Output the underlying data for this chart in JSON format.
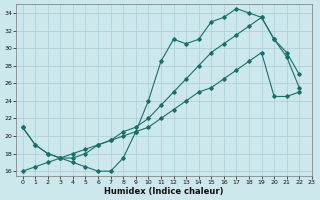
{
  "xlabel": "Humidex (Indice chaleur)",
  "bg_color": "#cce8ec",
  "grid_color": "#aacdd4",
  "line_color": "#1a6e6a",
  "xlim": [
    -0.5,
    23
  ],
  "ylim": [
    15.5,
    35
  ],
  "yticks": [
    16,
    18,
    20,
    22,
    24,
    26,
    28,
    30,
    32,
    34
  ],
  "xticks": [
    0,
    1,
    2,
    3,
    4,
    5,
    6,
    7,
    8,
    9,
    10,
    11,
    12,
    13,
    14,
    15,
    16,
    17,
    18,
    19,
    20,
    21,
    22,
    23
  ],
  "series1_x": [
    0,
    1,
    2,
    3,
    4,
    5,
    6,
    7,
    8,
    9,
    10,
    11,
    12,
    13,
    14,
    15,
    16,
    17,
    18,
    19,
    20,
    21,
    22
  ],
  "series1_y": [
    21.0,
    19.0,
    18.0,
    17.5,
    17.0,
    16.5,
    16.0,
    16.0,
    17.5,
    20.5,
    24.0,
    28.5,
    31.0,
    30.5,
    31.0,
    33.0,
    33.5,
    34.5,
    34.0,
    33.5,
    31.0,
    29.0,
    25.5
  ],
  "series2_x": [
    0,
    1,
    2,
    3,
    4,
    5,
    6,
    7,
    8,
    9,
    10,
    11,
    12,
    13,
    14,
    15,
    16,
    17,
    18,
    19,
    20,
    21,
    22
  ],
  "series2_y": [
    16.0,
    16.5,
    17.0,
    17.5,
    18.0,
    18.5,
    19.0,
    19.5,
    20.0,
    20.5,
    21.0,
    22.0,
    23.0,
    24.0,
    25.0,
    25.5,
    26.5,
    27.5,
    28.5,
    29.5,
    24.5,
    24.5,
    25.0
  ],
  "series3_x": [
    0,
    1,
    2,
    3,
    4,
    5,
    6,
    7,
    8,
    9,
    10,
    11,
    12,
    13,
    14,
    15,
    16,
    17,
    18,
    19,
    20,
    21,
    22
  ],
  "series3_y": [
    21.0,
    19.0,
    18.0,
    17.5,
    17.5,
    18.0,
    19.0,
    19.5,
    20.5,
    21.0,
    22.0,
    23.5,
    25.0,
    26.5,
    28.0,
    29.5,
    30.5,
    31.5,
    32.5,
    33.5,
    31.0,
    29.5,
    27.0
  ]
}
